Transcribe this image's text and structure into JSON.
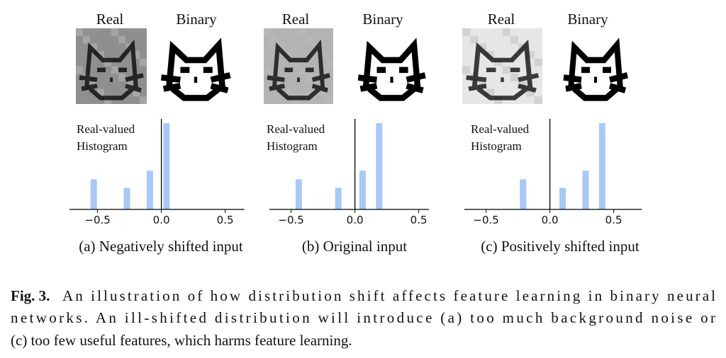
{
  "figure": {
    "panels": [
      {
        "real_label": "Real",
        "binary_label": "Binary",
        "hist_label": [
          "Real-valued",
          "Histogram"
        ],
        "subcaption": "(a) Negatively shifted input",
        "histogram": {
          "type": "bar",
          "x": [
            -0.53,
            -0.27,
            -0.09,
            0.04
          ],
          "values": [
            0.35,
            0.25,
            0.45,
            1.0
          ],
          "color": "#a9c8f5",
          "threshold": 0,
          "xlim": [
            -0.72,
            0.65
          ],
          "ylim": [
            0,
            1.05
          ],
          "xticks": [
            {
              "value": -0.5,
              "label": "−0.5"
            },
            {
              "value": 0,
              "label": "0.0"
            },
            0.5
          ]
        }
      },
      {
        "real_label": "Real",
        "binary_label": "Binary",
        "hist_label": [
          "Real-valued",
          "Histogram"
        ],
        "subcaption": "(b) Original input",
        "histogram": {
          "type": "bar",
          "x": [
            -0.44,
            -0.13,
            0.06,
            0.19
          ],
          "values": [
            0.35,
            0.25,
            0.45,
            1.0
          ],
          "color": "#a9c8f5",
          "threshold": 0,
          "xlim": [
            -0.67,
            0.58
          ],
          "ylim": [
            0,
            1.05
          ],
          "xticks": [
            {
              "value": -0.5,
              "label": "−0.5"
            },
            {
              "value": 0,
              "label": "0.0"
            },
            0.5
          ]
        }
      },
      {
        "real_label": "Real",
        "binary_label": "Binary",
        "hist_label": [
          "Real-valued",
          "Histogram"
        ],
        "subcaption": "(c) Positively shifted input",
        "histogram": {
          "type": "bar",
          "x": [
            -0.21,
            0.1,
            0.28,
            0.41
          ],
          "values": [
            0.35,
            0.25,
            0.45,
            1.0
          ],
          "color": "#a9c8f5",
          "threshold": 0,
          "xlim": [
            -0.67,
            0.72
          ],
          "ylim": [
            0,
            1.05
          ],
          "xticks": [
            {
              "value": -0.5,
              "label": "−0.5"
            },
            {
              "value": 0,
              "label": "0.0"
            },
            0.5
          ]
        }
      }
    ]
  },
  "caption": {
    "label": "Fig. 3.",
    "lines": [
      "An illustration of how distribution shift affects feature learning in binary neural",
      "networks. An ill-shifted distribution will introduce (a) too much background noise or",
      "(c) too few useful features, which harms feature learning."
    ]
  }
}
